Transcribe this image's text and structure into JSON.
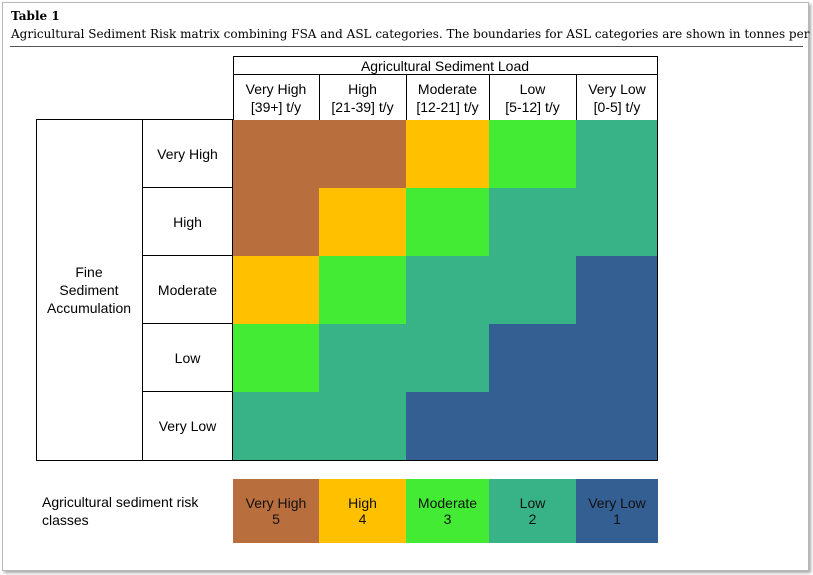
{
  "table_label": "Table 1",
  "caption": "Agricultural Sediment Risk matrix combining FSA and ASL categories. The boundaries for ASL categories are shown in tonnes per year.",
  "asl_header": "Agricultural Sediment Load",
  "asl_columns": [
    {
      "name": "Very High",
      "range": "[39+] t/y"
    },
    {
      "name": "High",
      "range": "[21-39] t/y"
    },
    {
      "name": "Moderate",
      "range": "[12-21] t/y"
    },
    {
      "name": "Low",
      "range": "[5-12] t/y"
    },
    {
      "name": "Very Low",
      "range": "[0-5] t/y"
    }
  ],
  "fsa_header_lines": [
    "Fine",
    "Sediment",
    "Accumulation"
  ],
  "fsa_rows": [
    "Very High",
    "High",
    "Moderate",
    "Low",
    "Very Low"
  ],
  "risk_colors": {
    "5": "#B96E3D",
    "4": "#FFC000",
    "3": "#43EB34",
    "2": "#38B287",
    "1": "#345F93"
  },
  "matrix": [
    [
      5,
      5,
      4,
      3,
      2
    ],
    [
      5,
      4,
      3,
      2,
      2
    ],
    [
      4,
      3,
      2,
      2,
      1
    ],
    [
      3,
      2,
      2,
      1,
      1
    ],
    [
      2,
      2,
      1,
      1,
      1
    ]
  ],
  "legend": {
    "label_lines": [
      "Agricultural sediment risk",
      "classes"
    ],
    "classes": [
      {
        "name": "Very High",
        "value": "5"
      },
      {
        "name": "High",
        "value": "4"
      },
      {
        "name": "Moderate",
        "value": "3"
      },
      {
        "name": "Low",
        "value": "2"
      },
      {
        "name": "Very Low",
        "value": "1"
      }
    ]
  }
}
